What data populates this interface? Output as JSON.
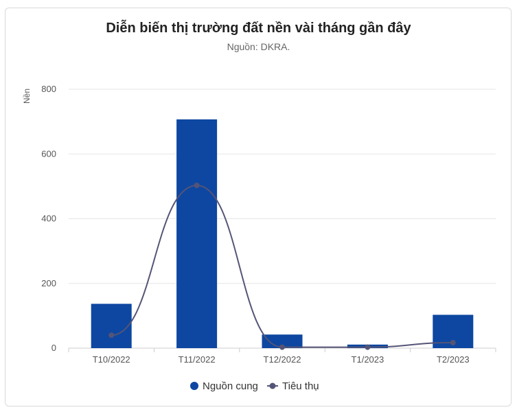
{
  "chart_data": {
    "type": "bar",
    "title": "Diễn biến thị trường đất nền vài tháng gần đây",
    "subtitle": "Nguồn: DKRA.",
    "ylabel": "Nền",
    "xlabel": "",
    "ylim": [
      0,
      800
    ],
    "yticks": [
      "0",
      "200",
      "400",
      "600",
      "800"
    ],
    "grid": true,
    "legend_position": "bottom",
    "categories": [
      "T10/2022",
      "T11/2022",
      "T12/2022",
      "T1/2023",
      "T2/2023"
    ],
    "series": [
      {
        "name": "Nguồn cung",
        "kind": "bar",
        "color": "#0d47a1",
        "values": [
          137,
          707,
          42,
          11,
          103
        ]
      },
      {
        "name": "Tiêu thụ",
        "kind": "spline",
        "color": "#545477",
        "values": [
          40,
          503,
          3,
          3,
          17
        ]
      }
    ]
  }
}
